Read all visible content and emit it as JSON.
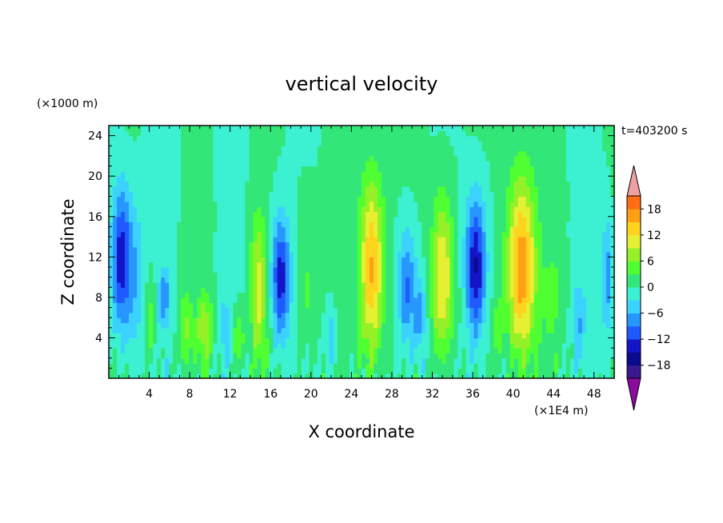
{
  "chart_data": {
    "type": "heatmap",
    "title": "vertical velocity",
    "xlabel": "X coordinate",
    "ylabel": "Z coordinate",
    "x_unit": "(×1E4 m)",
    "y_unit": "(×1000 m)",
    "time_label": "t=403200 s",
    "xlim": [
      0,
      50
    ],
    "ylim": [
      0,
      25
    ],
    "x_ticks": [
      4,
      8,
      12,
      16,
      20,
      24,
      28,
      32,
      36,
      40,
      44,
      48
    ],
    "y_ticks": [
      4,
      8,
      12,
      16,
      20,
      24
    ],
    "colorbar": {
      "levels": [
        -21,
        -18,
        -15,
        -12,
        -9,
        -6,
        -3,
        0,
        3,
        6,
        9,
        12,
        15,
        18,
        21
      ],
      "labeled_ticks": [
        -18,
        -12,
        -6,
        0,
        6,
        12,
        18
      ],
      "colors": [
        "#3a1890",
        "#0a0a8c",
        "#1414c8",
        "#1e5aff",
        "#2896ff",
        "#3cd2ff",
        "#3cf0d2",
        "#32e678",
        "#50ff32",
        "#96f028",
        "#e6f032",
        "#ffd21e",
        "#ffa014",
        "#ff6e14",
        "#ff2814",
        "#e61414"
      ],
      "under_color": "#8c0aa0",
      "over_color": "#f0a0a0"
    },
    "columns": [
      {
        "x": 1.2,
        "w": 0.9,
        "amp": -14,
        "zc": 12,
        "zs": 7
      },
      {
        "x": 2.5,
        "w": 1.0,
        "amp": -6,
        "zc": 10,
        "zs": 8
      },
      {
        "x": 5.5,
        "w": 0.6,
        "amp": -8,
        "zc": 8,
        "zs": 3
      },
      {
        "x": 4.2,
        "w": 0.5,
        "amp": 5,
        "zc": 6,
        "zs": 4
      },
      {
        "x": 7.6,
        "w": 0.6,
        "amp": 6,
        "zc": 5,
        "zs": 4
      },
      {
        "x": 9.5,
        "w": 0.8,
        "amp": 8,
        "zc": 5,
        "zs": 3.5
      },
      {
        "x": 11.5,
        "w": 0.5,
        "amp": -5,
        "zc": 5,
        "zs": 3
      },
      {
        "x": 12.8,
        "w": 0.6,
        "amp": 6,
        "zc": 4,
        "zs": 3
      },
      {
        "x": 14.8,
        "w": 0.8,
        "amp": 10,
        "zc": 9,
        "zs": 7
      },
      {
        "x": 17.0,
        "w": 0.9,
        "amp": -14,
        "zc": 10,
        "zs": 6
      },
      {
        "x": 19.5,
        "w": 1.0,
        "amp": 4,
        "zc": 10,
        "zs": 8
      },
      {
        "x": 22.0,
        "w": 0.5,
        "amp": -6,
        "zc": 4,
        "zs": 3
      },
      {
        "x": 26.0,
        "w": 1.2,
        "amp": 16,
        "zc": 11,
        "zs": 9
      },
      {
        "x": 29.5,
        "w": 0.9,
        "amp": -10,
        "zc": 9,
        "zs": 6
      },
      {
        "x": 30.8,
        "w": 0.6,
        "amp": -7,
        "zc": 6,
        "zs": 4
      },
      {
        "x": 33.0,
        "w": 1.1,
        "amp": 13,
        "zc": 10,
        "zs": 8
      },
      {
        "x": 36.3,
        "w": 1.0,
        "amp": -16,
        "zc": 11,
        "zs": 7
      },
      {
        "x": 38.5,
        "w": 0.5,
        "amp": 5,
        "zc": 5,
        "zs": 3
      },
      {
        "x": 40.8,
        "w": 1.4,
        "amp": 18,
        "zc": 11,
        "zs": 9
      },
      {
        "x": 44.0,
        "w": 1.0,
        "amp": 3,
        "zc": 8,
        "zs": 6
      },
      {
        "x": 46.5,
        "w": 0.6,
        "amp": -5,
        "zc": 6,
        "zs": 4
      },
      {
        "x": 49.3,
        "w": 0.5,
        "amp": -8,
        "zc": 10,
        "zs": 6
      }
    ]
  }
}
